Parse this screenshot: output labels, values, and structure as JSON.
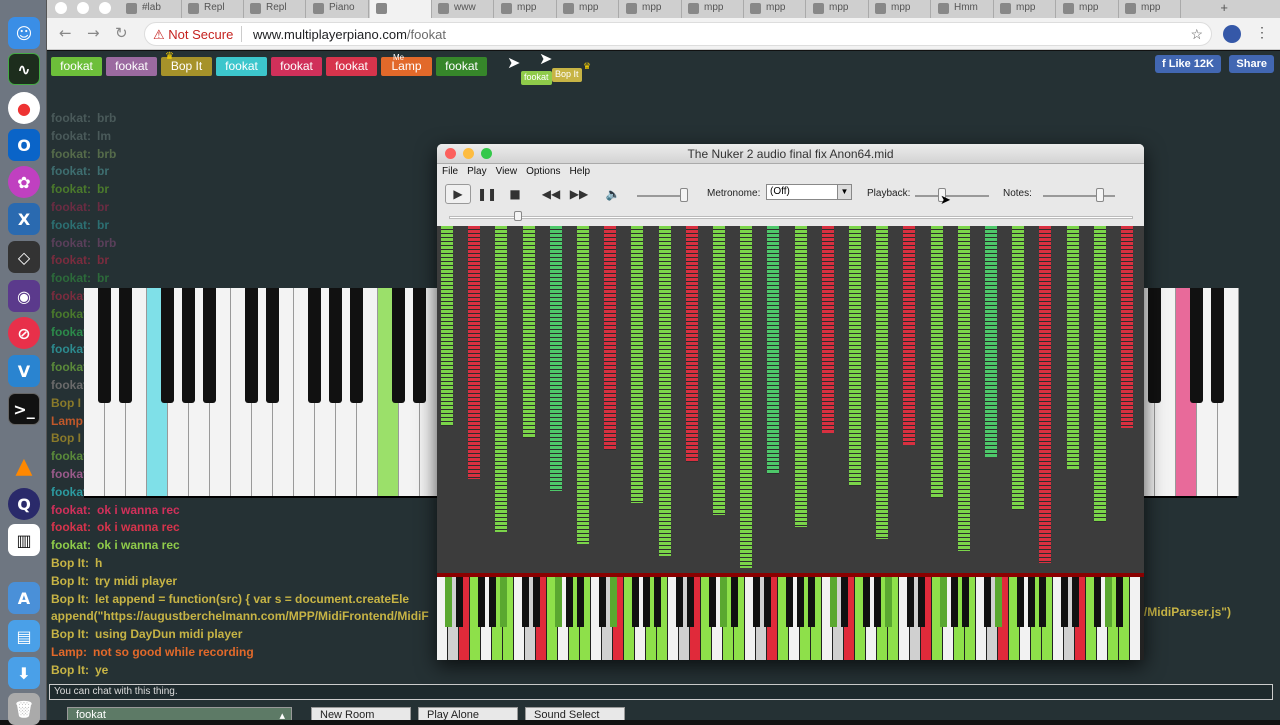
{
  "browser": {
    "tabs": [
      "#lab",
      "Repl",
      "Repl",
      "Piano",
      "",
      "www",
      "mpp",
      "mpp",
      "mpp",
      "mpp",
      "mpp",
      "mpp",
      "mpp",
      "Hmm",
      "mpp",
      "mpp",
      "mpp"
    ],
    "not_secure": "Not Secure",
    "url_host": "www.multiplayerpiano.com",
    "url_path": "/fookat",
    "new_tab": "+"
  },
  "page": {
    "users": [
      {
        "name": "fookat",
        "color": "#6dbf3a"
      },
      {
        "name": "fookat",
        "color": "#9b6aa0"
      },
      {
        "name": "Bop It",
        "color": "#a6922a"
      },
      {
        "name": "fookat",
        "color": "#3cc6cc"
      },
      {
        "name": "fookat",
        "color": "#d0305a"
      },
      {
        "name": "fookat",
        "color": "#d7344c"
      },
      {
        "name": "Lamp",
        "color": "#e2692a"
      },
      {
        "name": "fookat",
        "color": "#36862a"
      }
    ],
    "lamp_sup": "Me",
    "cursor_labels": [
      "fookat",
      "Bop It"
    ],
    "fb": {
      "like": "Like 12K",
      "share": "Share"
    },
    "chat_faded": [
      {
        "name": "fookat:",
        "msg": "brb",
        "color": "#4a5a5a"
      },
      {
        "name": "fookat:",
        "msg": "lm",
        "color": "#4a5a5a"
      },
      {
        "name": "fookat:",
        "msg": "brb",
        "color": "#556b4a"
      },
      {
        "name": "fookat:",
        "msg": "br",
        "color": "#3e6e70"
      },
      {
        "name": "fookat:",
        "msg": "br",
        "color": "#4b7a2c"
      },
      {
        "name": "fookat:",
        "msg": "br",
        "color": "#6a2c42"
      },
      {
        "name": "fookat:",
        "msg": "br",
        "color": "#2c6f72"
      },
      {
        "name": "fookat:",
        "msg": "brb",
        "color": "#5a3f5a"
      },
      {
        "name": "fookat:",
        "msg": "br",
        "color": "#7a2c3e"
      },
      {
        "name": "fookat:",
        "msg": "br",
        "color": "#2c6a3a"
      },
      {
        "name": "fookat",
        "msg": "",
        "color": "#7a2c3e"
      },
      {
        "name": "fookat",
        "msg": "",
        "color": "#4a7a2c"
      },
      {
        "name": "fookat",
        "msg": "",
        "color": "#2c8a4a"
      },
      {
        "name": "fookat",
        "msg": "",
        "color": "#2c8a8e"
      },
      {
        "name": "fookat",
        "msg": "",
        "color": "#5a8a3a"
      },
      {
        "name": "fookat",
        "msg": "",
        "color": "#6a6a6a"
      },
      {
        "name": "Bop I",
        "msg": "",
        "color": "#8a7a2a"
      },
      {
        "name": "Lamp",
        "msg": "",
        "color": "#c0582a"
      },
      {
        "name": "Bop I",
        "msg": "",
        "color": "#8a7a2a"
      },
      {
        "name": "fookat",
        "msg": "",
        "color": "#5a8a3a"
      },
      {
        "name": "fookat",
        "msg": "",
        "color": "#9a5a8a"
      },
      {
        "name": "fookat",
        "msg": "",
        "color": "#2c9aa0"
      }
    ],
    "chat": [
      {
        "name": "fookat:",
        "msg": "ok i wanna rec",
        "color": "#d0305a"
      },
      {
        "name": "fookat:",
        "msg": "ok i wanna rec",
        "color": "#d7344c"
      },
      {
        "name": "fookat:",
        "msg": "ok i wanna rec",
        "color": "#8fcb4a"
      },
      {
        "name": "Bop It:",
        "msg": "h",
        "color": "#c7b445"
      },
      {
        "name": "Bop It:",
        "msg": "try midi player",
        "color": "#c7b445"
      },
      {
        "name": "Bop It:",
        "msg": "let append = function(src) { var s = document.createEle",
        "color": "#c7b445"
      },
      {
        "name": "",
        "msg": "append(\"https://augustberchelmann.com/MPP/MidiFrontend/MidiF",
        "color": "#c7b445"
      },
      {
        "name": "Bop It:",
        "msg": "using DayDun midi player",
        "color": "#c7b445"
      },
      {
        "name": "Lamp:",
        "msg": "not so good while recording",
        "color": "#e2692a"
      },
      {
        "name": "Bop It:",
        "msg": "ye",
        "color": "#c7b445"
      }
    ],
    "chat_overflow": "end/MidiParser.js\")",
    "chat_placeholder": "You can chat with this thing.",
    "bottom": {
      "room": "fookat",
      "new_room": "New Room",
      "play_alone": "Play Alone",
      "sound_select": "Sound Select"
    }
  },
  "player": {
    "title": "The Nuker 2 audio final fix Anon64.mid",
    "menu": [
      "File",
      "Play",
      "View",
      "Options",
      "Help"
    ],
    "metronome_label": "Metronome:",
    "metronome_value": "(Off)",
    "playback_label": "Playback:",
    "notes_label": "Notes:",
    "icons": {
      "play": "play-icon",
      "pause": "pause-icon",
      "stop": "stop-icon",
      "rewind": "rewind-icon",
      "forward": "fast-forward-icon",
      "volume": "volume-icon"
    }
  }
}
